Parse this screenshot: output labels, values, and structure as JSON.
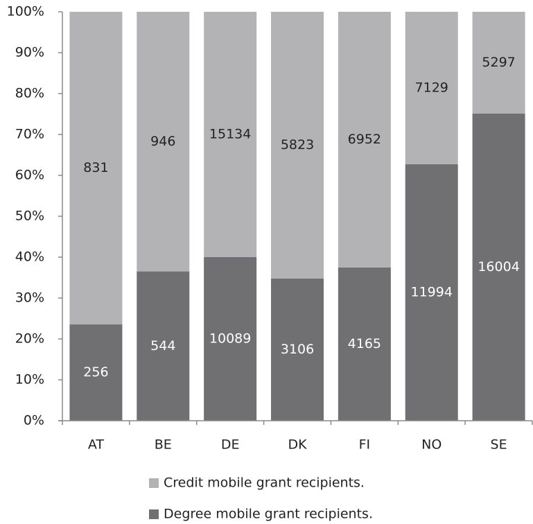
{
  "chart_data": {
    "type": "bar",
    "stacking": "percent",
    "categories": [
      "AT",
      "BE",
      "DE",
      "DK",
      "FI",
      "NO",
      "SE"
    ],
    "series": [
      {
        "name": "Degree mobile grant recipients.",
        "color": "#707073",
        "label_color": "#ffffff",
        "values": [
          256,
          544,
          10089,
          3106,
          4165,
          11994,
          16004
        ]
      },
      {
        "name": "Credit mobile grant recipients.",
        "color": "#b3b3b5",
        "label_color": "#222222",
        "values": [
          831,
          946,
          15134,
          5823,
          6952,
          7129,
          5297
        ]
      }
    ],
    "ylim": [
      0,
      100
    ],
    "yticks": [
      {
        "value": 0,
        "label": "0%"
      },
      {
        "value": 10,
        "label": "10%"
      },
      {
        "value": 20,
        "label": "20%"
      },
      {
        "value": 30,
        "label": "30%"
      },
      {
        "value": 40,
        "label": "40%"
      },
      {
        "value": 50,
        "label": "50%"
      },
      {
        "value": 60,
        "label": "60%"
      },
      {
        "value": 70,
        "label": "70%"
      },
      {
        "value": 80,
        "label": "80%"
      },
      {
        "value": 90,
        "label": "90%"
      },
      {
        "value": 100,
        "label": "100%"
      }
    ],
    "legend": "bottom"
  }
}
